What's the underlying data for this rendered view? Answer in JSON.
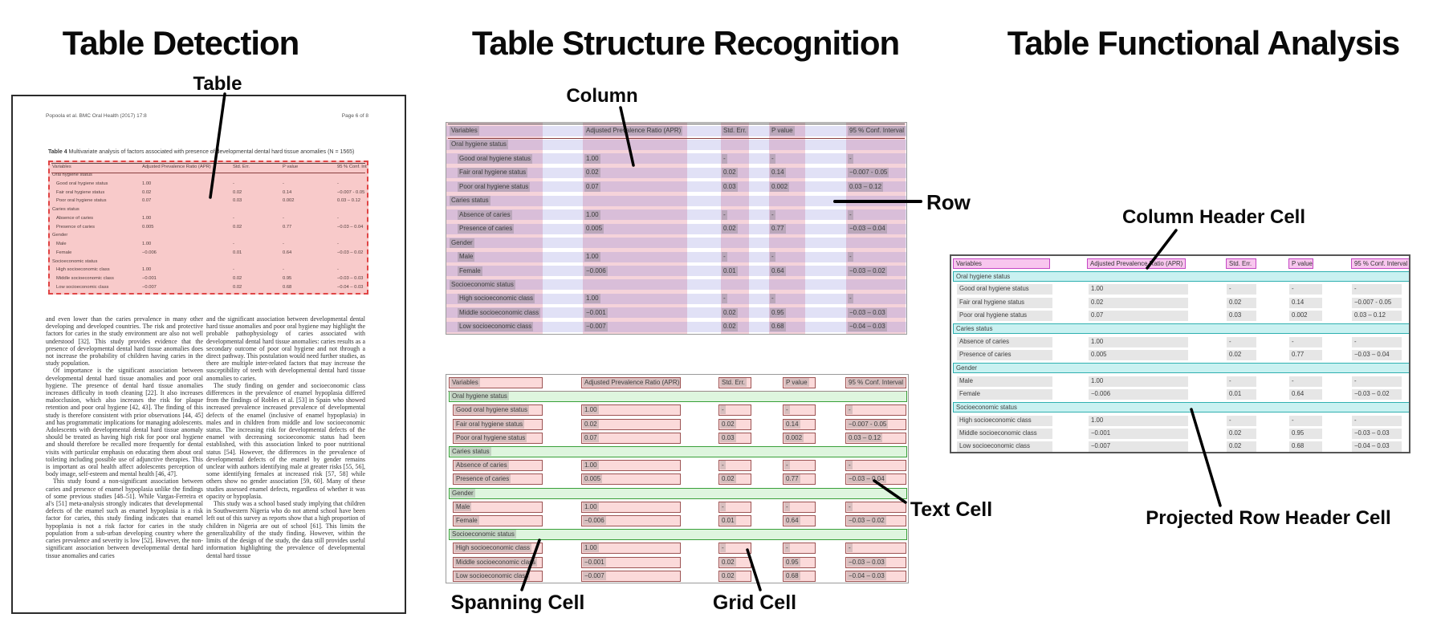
{
  "panels": {
    "detection": {
      "title": "Table Detection",
      "labels": {
        "table": "Table"
      }
    },
    "structure": {
      "title": "Table Structure Recognition",
      "labels": {
        "column": "Column",
        "row": "Row",
        "spanning_cell": "Spanning Cell",
        "text_cell": "Text Cell",
        "grid_cell": "Grid Cell"
      }
    },
    "functional": {
      "title": "Table Functional Analysis",
      "labels": {
        "column_header_cell": "Column Header Cell",
        "projected_row_header_cell": "Projected Row Header Cell"
      }
    }
  },
  "colors": {
    "detection_overlay": "#f8caca",
    "detection_border": "#e04545",
    "column_overlay": "rgba(221,110,132,0.30)",
    "row_overlay": "rgba(118,118,214,0.22)",
    "grid_cell_fill": "#fbdada",
    "grid_cell_border": "#9c5353",
    "spanning_cell_fill": "#def5de",
    "spanning_cell_border": "#39a039",
    "column_header_fill": "#f8c6ee",
    "column_header_border": "#c447c4",
    "projected_row_header_fill": "#c9f1f1",
    "projected_row_header_border": "#2fb0b0",
    "text_highlight": "#e6e6e6"
  },
  "document": {
    "header_left": "Popoola et al. BMC Oral Health  (2017) 17:8",
    "header_right": "Page 6 of 8",
    "caption_label": "Table 4",
    "caption_text": " Multivariate analysis of factors associated with presence of developmental dental hard tissue anomalies (N = 1565)",
    "body_col1": [
      "and even lower than the caries prevalence in many other developing and developed countries. The risk and protective factors for caries in the study environment are also not well understood [32]. This study provides evidence that the presence of developmental dental hard tissue anomalies does not increase the probability of children having caries in the study population.",
      "Of importance is the significant association between developmental dental hard tissue anomalies and poor oral hygiene. The presence of dental hard tissue anomalies increases difficulty in tooth cleaning [22]. It also increases malocclusion, which also increases the risk for plaque retention and poor oral hygiene [42, 43]. The finding of this study is therefore consistent with prior observations [44, 45] and has programmatic implications for managing adolescents. Adolescents with developmental dental hard tissue anomaly should be treated as having high risk for poor oral hygiene and should therefore be recalled more frequently for dental visits with particular emphasis on educating them about oral toileting including possible use of adjunctive therapies. This is important as oral health affect adolescents perception of body image, self-esteem and mental health [46, 47].",
      "This study found a non-significant association between caries and presence of enamel hypoplasia unlike the findings of some previous studies [48–51]. While Vargas-Ferreira et al's [51] meta-analysis strongly indicates that developmental defects of the enamel such as enamel hypoplasia is a risk factor for caries, this study finding indicates that enamel hypoplasia is not a risk factor for caries in the study population from a sub-urban developing country where the caries prevalence and severity is low [52]. However, the non-significant association between developmental dental hard tissue anomalies and caries"
    ],
    "body_col2": [
      "and the significant association between developmental dental hard tissue anomalies and poor oral hygiene may highlight the probable pathophysiology of caries associated with developmental dental hard tissue anomalies: caries results as a secondary outcome of poor oral hygiene and not through a direct pathway. This postulation would need further studies, as there are multiple inter-related factors that may increase the susceptibility of teeth with developmental dental hard tissue anomalies to caries.",
      "The study finding on gender and socioeconomic class differences in the prevalence of enamel hypoplasia differed from the findings of Robles et al. [53] in Spain who showed increased prevalence increased prevalence of developmental defects of the enamel (inclusive of enamel hypoplasia) in males and in children from middle and low socioeconomic status. The increasing risk for developmental defects of the enamel with decreasing socioeconomic status had been established, with this association linked to poor nutritional status [54]. However, the differences in the prevalence of developmental defects of the enamel by gender remains unclear with authors identifying male at greater risks [55, 56], some identifying females at increased risk [57, 58] while others show no gender association [59, 60]. Many of these studies assessed enamel defects, regardless of whether it was opacity or hypoplasia.",
      "This study was a school based study implying that children in Southwestern Nigeria who do not attend school have been left out of this survey as reports show that a high proportion of children in Nigeria are out of school [61]. This limits the generalizability of the study finding. However, within the limits of the design of the study, the data still provides useful information highlighting the prevalence of developmental dental hard tissue"
    ]
  },
  "table": {
    "headers": [
      "Variables",
      "Adjusted Prevalence Ratio (APR)",
      "Std. Err.",
      "P value",
      "95 % Conf. Interval"
    ],
    "sections": [
      {
        "label": "Oral hygiene status",
        "rows": [
          {
            "label": "Good oral hygiene status",
            "values": [
              "1.00",
              "-",
              "-",
              "-"
            ]
          },
          {
            "label": "Fair oral hygiene status",
            "values": [
              "0.02",
              "0.02",
              "0.14",
              "−0.007 - 0.05"
            ]
          },
          {
            "label": "Poor oral hygiene status",
            "values": [
              "0.07",
              "0.03",
              "0.002",
              "0.03 – 0.12"
            ]
          }
        ]
      },
      {
        "label": "Caries status",
        "rows": [
          {
            "label": "Absence of caries",
            "values": [
              "1.00",
              "-",
              "-",
              "-"
            ]
          },
          {
            "label": "Presence of caries",
            "values": [
              "0.005",
              "0.02",
              "0.77",
              "−0.03 – 0.04"
            ]
          }
        ]
      },
      {
        "label": "Gender",
        "rows": [
          {
            "label": "Male",
            "values": [
              "1.00",
              "-",
              "-",
              "-"
            ]
          },
          {
            "label": "Female",
            "values": [
              "−0.006",
              "0.01",
              "0.64",
              "−0.03 – 0.02"
            ]
          }
        ]
      },
      {
        "label": "Socioeconomic status",
        "rows": [
          {
            "label": "High socioeconomic class",
            "values": [
              "1.00",
              "-",
              "-",
              "-"
            ]
          },
          {
            "label": "Middle socioeconomic class",
            "values": [
              "−0.001",
              "0.02",
              "0.95",
              "−0.03 – 0.03"
            ]
          },
          {
            "label": "Low socioeconomic class",
            "values": [
              "−0.007",
              "0.02",
              "0.68",
              "−0.04 – 0.03"
            ]
          }
        ]
      }
    ]
  }
}
